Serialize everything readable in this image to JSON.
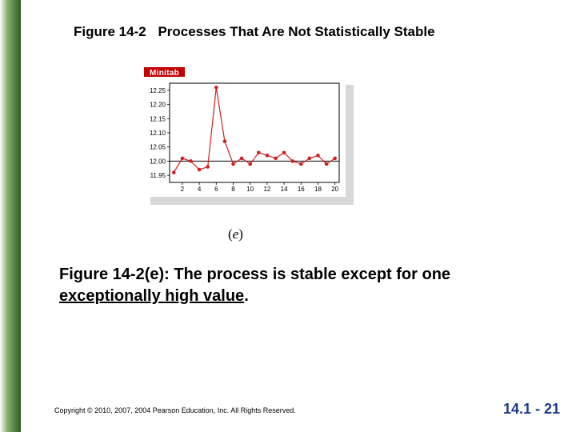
{
  "title": {
    "figure": "Figure 14-2",
    "text": "Processes That Are Not Statistically Stable"
  },
  "minitab_label": "Minitab",
  "chart": {
    "type": "line",
    "background_color": "#ffffff",
    "border_color": "#000000",
    "line_color": "#d02020",
    "marker_color": "#d02020",
    "marker_size": 2.3,
    "line_width": 1.2,
    "centerline": {
      "y": 12.0,
      "color": "#000000",
      "width": 1
    },
    "ylim": [
      11.925,
      12.275
    ],
    "xlim": [
      0.5,
      20.5
    ],
    "yticks": [
      11.95,
      12.0,
      12.05,
      12.1,
      12.15,
      12.2,
      12.25
    ],
    "ytick_labels": [
      "11.95",
      "12.00",
      "12.05",
      "12.10",
      "12.15",
      "12.20",
      "12.25"
    ],
    "xticks": [
      2,
      4,
      6,
      8,
      10,
      12,
      14,
      16,
      18,
      20
    ],
    "xtick_labels": [
      "2",
      "4",
      "6",
      "8",
      "10",
      "12",
      "14",
      "16",
      "18",
      "20"
    ],
    "x": [
      1,
      2,
      3,
      4,
      5,
      6,
      7,
      8,
      9,
      10,
      11,
      12,
      13,
      14,
      15,
      16,
      17,
      18,
      19,
      20
    ],
    "y": [
      11.96,
      12.01,
      12.0,
      11.97,
      11.98,
      12.26,
      12.07,
      11.99,
      12.01,
      11.99,
      12.03,
      12.02,
      12.01,
      12.03,
      12.0,
      11.99,
      12.01,
      12.02,
      11.99,
      12.01
    ]
  },
  "subfig_label": "e",
  "caption": {
    "lead": "Figure 14-2(e): The process is stable except for one ",
    "underlined": "exceptionally high value",
    "tail": "."
  },
  "copyright": "Copyright © 2010, 2007, 2004 Pearson Education, Inc. All Rights Reserved.",
  "pagenum": "14.1 - 21"
}
